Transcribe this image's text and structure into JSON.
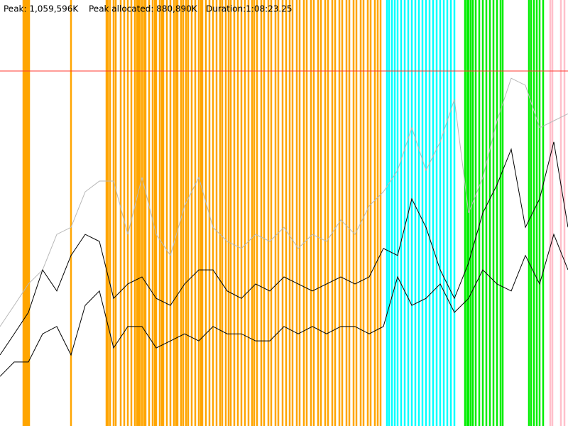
{
  "header": [
    "Peak: 1,059,596K",
    "Peak allocated: 880,890K",
    "Duration:1:08:23.25"
  ],
  "chart_data": {
    "type": "line",
    "xlim": [
      0,
      800
    ],
    "ylim": [
      0,
      1271515
    ],
    "peak_line": {
      "value": 1059596,
      "color": "#ff3b30"
    },
    "x": [
      0,
      20,
      40,
      60,
      80,
      100,
      120,
      140,
      160,
      180,
      200,
      220,
      240,
      260,
      280,
      300,
      320,
      340,
      360,
      380,
      400,
      420,
      440,
      460,
      480,
      500,
      520,
      540,
      560,
      580,
      600,
      620,
      640,
      660,
      680,
      700,
      720,
      740,
      760,
      780,
      800
    ],
    "series": [
      {
        "color": "#b8b8b8",
        "values": [
          297000,
          360000,
          424000,
          466000,
          572000,
          593000,
          699000,
          731000,
          731000,
          572000,
          742000,
          572000,
          509000,
          657000,
          742000,
          593000,
          551000,
          530000,
          572000,
          551000,
          593000,
          530000,
          572000,
          551000,
          615000,
          572000,
          657000,
          699000,
          763000,
          890000,
          763000,
          848000,
          975000,
          636000,
          742000,
          911000,
          1038000,
          1017000,
          890000,
          911000,
          932000
        ]
      },
      {
        "color": "#000000",
        "values": [
          212000,
          275000,
          339000,
          466000,
          403000,
          509000,
          572000,
          551000,
          381000,
          424000,
          445000,
          381000,
          360000,
          424000,
          466000,
          466000,
          403000,
          381000,
          424000,
          403000,
          445000,
          424000,
          403000,
          424000,
          445000,
          424000,
          445000,
          530000,
          509000,
          678000,
          593000,
          466000,
          381000,
          487000,
          636000,
          720000,
          826000,
          593000,
          678000,
          848000,
          593000
        ]
      },
      {
        "color": "#000000",
        "values": [
          148000,
          191000,
          191000,
          275000,
          297000,
          212000,
          360000,
          403000,
          233000,
          297000,
          297000,
          233000,
          254000,
          275000,
          254000,
          297000,
          275000,
          275000,
          254000,
          254000,
          297000,
          275000,
          297000,
          275000,
          297000,
          297000,
          275000,
          297000,
          445000,
          360000,
          381000,
          424000,
          339000,
          381000,
          466000,
          424000,
          403000,
          509000,
          424000,
          572000,
          466000
        ]
      }
    ],
    "markers": [
      {
        "color": "#ffa500",
        "x": [
          33,
          35,
          37,
          39,
          41,
          100,
          150,
          152,
          155,
          160,
          163,
          170,
          175,
          180,
          185,
          190,
          193,
          195,
          197,
          200,
          203,
          205,
          210,
          215,
          218,
          220,
          225,
          228,
          230,
          235,
          240,
          245,
          248,
          250,
          255,
          258,
          262,
          265,
          270,
          275,
          280,
          283,
          285,
          290,
          295,
          300,
          305,
          310,
          313,
          318,
          322,
          325,
          330,
          335,
          340,
          345,
          350,
          355,
          358,
          362,
          368,
          372,
          378,
          382,
          388,
          392,
          398,
          403,
          408,
          412,
          418,
          422,
          428,
          432,
          438,
          442,
          448,
          452,
          458,
          462,
          468,
          472,
          478,
          482,
          488,
          492,
          498,
          502,
          508,
          512,
          518,
          522,
          528,
          532,
          536
        ]
      },
      {
        "color": "#00ffff",
        "x": [
          545,
          548,
          552,
          556,
          560,
          565,
          570,
          575,
          580,
          585,
          590,
          595,
          600,
          605,
          610,
          615,
          620,
          625,
          630,
          635,
          640
        ]
      },
      {
        "color": "#00ee00",
        "x": [
          655,
          658,
          660,
          663,
          666,
          670,
          675,
          680,
          685,
          690,
          695,
          700,
          705,
          708,
          745,
          748,
          752,
          756,
          760,
          765
        ]
      },
      {
        "color": "#ffc0cb",
        "x": [
          775,
          778,
          790,
          795
        ]
      }
    ]
  }
}
